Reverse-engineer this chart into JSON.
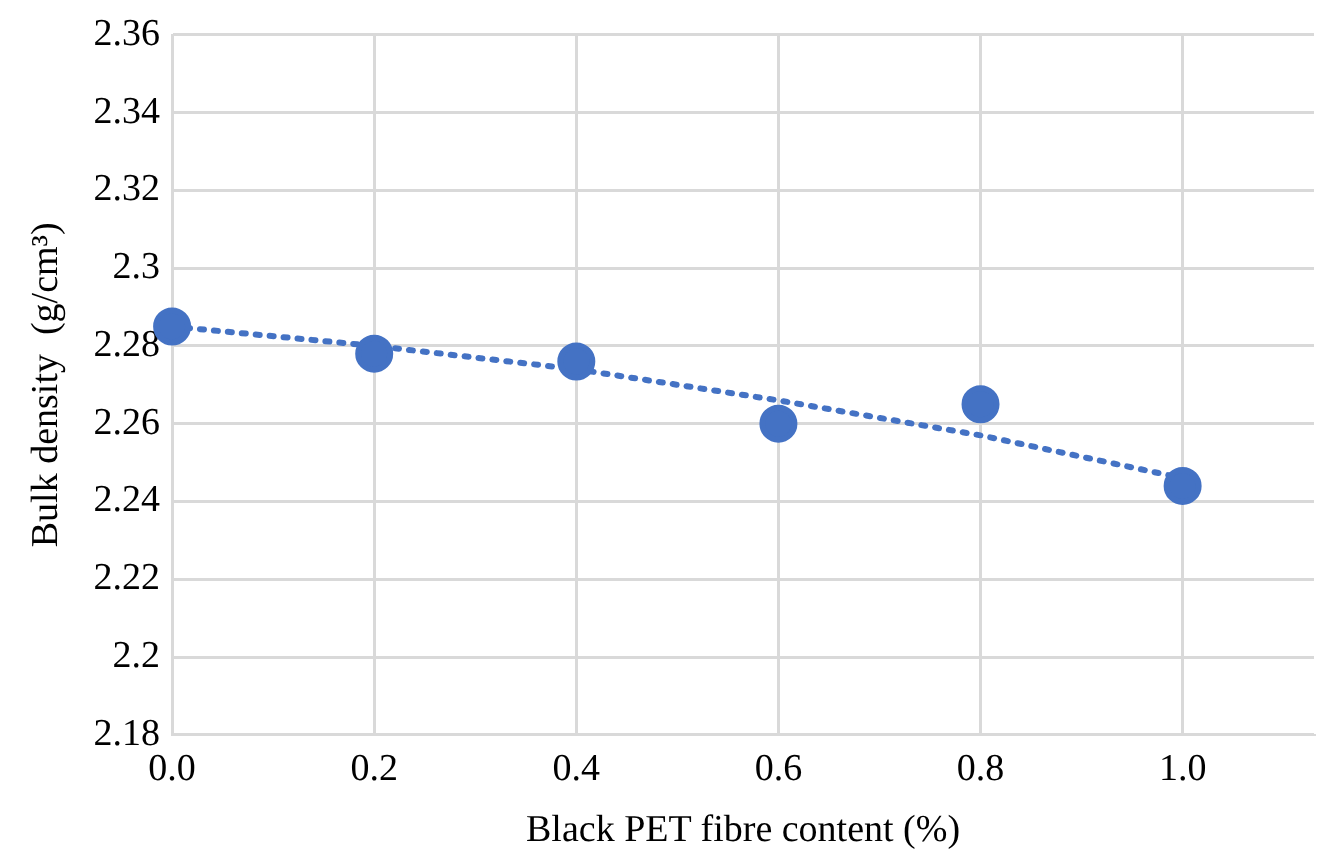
{
  "chart_data": {
    "type": "scatter",
    "xlabel": "Black PET fibre content (%)",
    "ylabel": "Bulk density  (g/cm³)",
    "xlim": [
      0,
      1.13
    ],
    "xticks": [
      {
        "value": 0,
        "label": "0.0"
      },
      0.2,
      0.4,
      0.6,
      0.8,
      {
        "value": 1,
        "label": "1.0"
      }
    ],
    "ylim": [
      2.18,
      2.36
    ],
    "yticks": [
      2.18,
      2.2,
      2.22,
      2.24,
      2.26,
      2.28,
      2.3,
      2.32,
      2.34,
      2.36
    ],
    "grid": true,
    "legend": false,
    "series": [
      {
        "color": "#4472c4",
        "marker": "circle",
        "x": [
          0,
          0.2,
          0.4,
          0.6,
          0.8,
          1.0
        ],
        "values": [
          2.285,
          2.278,
          2.276,
          2.26,
          2.265,
          2.244
        ]
      },
      {
        "type": "line",
        "color": "#4472c4",
        "marker": "none",
        "line_style": "dotted",
        "x": [
          0,
          0.2,
          0.4,
          0.6,
          0.8,
          1.0
        ],
        "values": [
          2.285,
          2.28,
          2.274,
          2.266,
          2.257,
          2.246
        ]
      }
    ]
  }
}
